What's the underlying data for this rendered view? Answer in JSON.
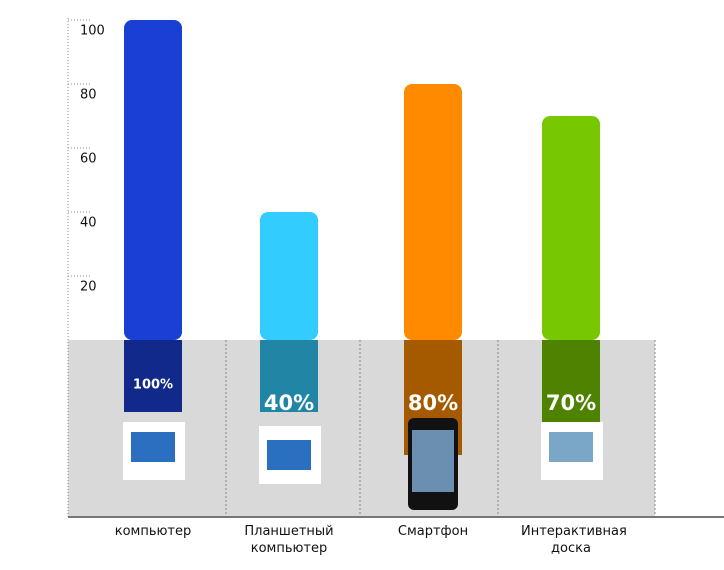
{
  "chart_data": {
    "type": "bar",
    "categories": [
      "компьютер",
      "Планшетный компьютер",
      "Смартфон",
      "Интерактивная доска"
    ],
    "values": [
      100,
      40,
      80,
      70
    ],
    "value_labels": [
      "100%",
      "40%",
      "80%",
      "70%"
    ],
    "colors": [
      "#1a3fd4",
      "#33ccff",
      "#ff8a00",
      "#78c800"
    ],
    "ylim": [
      0,
      100
    ],
    "yticks": [
      20,
      40,
      60,
      80,
      100
    ]
  }
}
